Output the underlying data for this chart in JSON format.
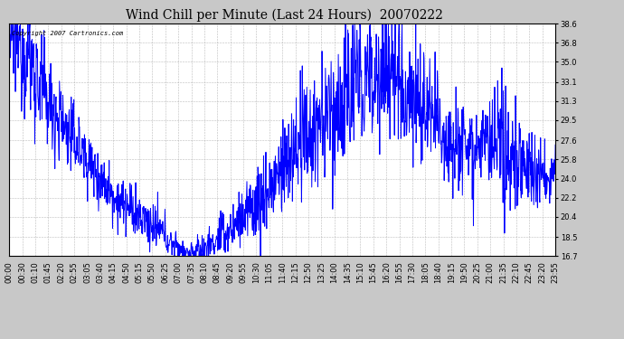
{
  "title": "Wind Chill per Minute (Last 24 Hours)  20070222",
  "copyright_text": "Copyright 2007 Cartronics.com",
  "line_color": "#0000FF",
  "background_color": "#c8c8c8",
  "plot_bg_color": "#ffffff",
  "grid_color": "#aaaaaa",
  "yticks": [
    38.6,
    36.8,
    35.0,
    33.1,
    31.3,
    29.5,
    27.6,
    25.8,
    24.0,
    22.2,
    20.4,
    18.5,
    16.7
  ],
  "xtick_labels": [
    "00:00",
    "00:30",
    "01:10",
    "01:45",
    "02:20",
    "02:55",
    "03:05",
    "03:40",
    "04:15",
    "04:50",
    "05:15",
    "05:50",
    "06:25",
    "07:00",
    "07:35",
    "08:10",
    "08:45",
    "09:20",
    "09:55",
    "10:30",
    "11:05",
    "11:40",
    "12:15",
    "12:50",
    "13:25",
    "14:00",
    "14:35",
    "15:10",
    "15:45",
    "16:20",
    "16:55",
    "17:30",
    "18:05",
    "18:40",
    "19:15",
    "19:50",
    "20:25",
    "21:00",
    "21:35",
    "22:10",
    "22:45",
    "23:20",
    "23:55"
  ],
  "ylim_min": 16.7,
  "ylim_max": 38.6,
  "title_fontsize": 10,
  "tick_fontsize": 6,
  "line_width": 0.7,
  "base_curve": [
    [
      0.0,
      36.5
    ],
    [
      0.01,
      37.2
    ],
    [
      0.02,
      37.0
    ],
    [
      0.035,
      35.5
    ],
    [
      0.05,
      33.5
    ],
    [
      0.065,
      31.8
    ],
    [
      0.08,
      30.5
    ],
    [
      0.1,
      29.0
    ],
    [
      0.12,
      27.5
    ],
    [
      0.14,
      26.0
    ],
    [
      0.16,
      24.5
    ],
    [
      0.18,
      23.2
    ],
    [
      0.2,
      22.0
    ],
    [
      0.22,
      21.0
    ],
    [
      0.24,
      20.2
    ],
    [
      0.26,
      19.5
    ],
    [
      0.28,
      18.8
    ],
    [
      0.295,
      18.0
    ],
    [
      0.31,
      17.5
    ],
    [
      0.32,
      17.2
    ],
    [
      0.33,
      17.0
    ],
    [
      0.34,
      17.1
    ],
    [
      0.35,
      17.3
    ],
    [
      0.36,
      17.5
    ],
    [
      0.37,
      17.8
    ],
    [
      0.39,
      18.5
    ],
    [
      0.41,
      19.5
    ],
    [
      0.43,
      20.5
    ],
    [
      0.45,
      21.5
    ],
    [
      0.47,
      22.5
    ],
    [
      0.49,
      24.0
    ],
    [
      0.51,
      25.5
    ],
    [
      0.53,
      27.0
    ],
    [
      0.55,
      28.0
    ],
    [
      0.57,
      29.0
    ],
    [
      0.59,
      30.0
    ],
    [
      0.61,
      31.0
    ],
    [
      0.63,
      32.5
    ],
    [
      0.65,
      33.5
    ],
    [
      0.67,
      34.2
    ],
    [
      0.685,
      34.5
    ],
    [
      0.7,
      34.0
    ],
    [
      0.715,
      33.5
    ],
    [
      0.73,
      32.5
    ],
    [
      0.745,
      31.5
    ],
    [
      0.76,
      30.5
    ],
    [
      0.775,
      29.5
    ],
    [
      0.79,
      28.8
    ],
    [
      0.805,
      28.2
    ],
    [
      0.82,
      27.8
    ],
    [
      0.835,
      27.5
    ],
    [
      0.85,
      27.3
    ],
    [
      0.865,
      27.0
    ],
    [
      0.88,
      26.8
    ],
    [
      0.895,
      26.5
    ],
    [
      0.91,
      26.2
    ],
    [
      0.925,
      25.8
    ],
    [
      0.94,
      25.5
    ],
    [
      0.955,
      25.0
    ],
    [
      0.97,
      24.5
    ],
    [
      0.98,
      24.0
    ],
    [
      0.99,
      23.5
    ],
    [
      1.0,
      25.5
    ]
  ]
}
